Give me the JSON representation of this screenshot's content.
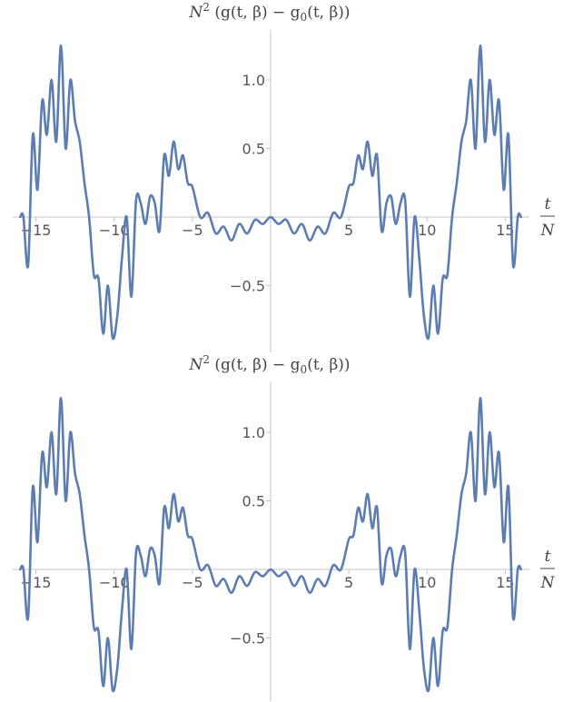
{
  "chart_data": [
    {
      "type": "line",
      "title": {
        "n": "N",
        "sup": "2",
        "rest": " (g(t, β) − g",
        "sub": "0",
        "tail": "(t, β))"
      },
      "xlabel": {
        "num": "t",
        "den": "N"
      },
      "xlim": [
        -16.6,
        16.6
      ],
      "ylim": [
        -0.9,
        1.35
      ],
      "x_ticks": [
        -15,
        -10,
        -5,
        5,
        10,
        15
      ],
      "x_tick_labels": [
        "−15",
        "−10",
        "−5",
        "5",
        "10",
        "15"
      ],
      "y_ticks": [
        1.0,
        0.5,
        -0.5
      ],
      "y_tick_labels": [
        "1.0",
        "0.5",
        "−0.5"
      ],
      "color": "#5b7db1",
      "series": [
        {
          "x": [
            0,
            0.5,
            1,
            1.5,
            2,
            2.5,
            3,
            3.5,
            4,
            4.5,
            5,
            5.3,
            5.6,
            5.9,
            6.2,
            6.5,
            6.8,
            7.1,
            7.4,
            7.7,
            8.0,
            8.3,
            8.6,
            8.9,
            9.2,
            9.5,
            9.8,
            10.1,
            10.4,
            10.7,
            11.0,
            11.3,
            11.6,
            11.9,
            12.2,
            12.5,
            12.8,
            13.1,
            13.4,
            13.7,
            14.0,
            14.3,
            14.6,
            14.9,
            15.2,
            15.5,
            15.8,
            16.0
          ],
          "y": [
            0.0,
            -0.05,
            -0.02,
            -0.12,
            -0.05,
            -0.17,
            -0.07,
            -0.12,
            0.03,
            0.0,
            0.22,
            0.25,
            0.45,
            0.35,
            0.55,
            0.3,
            0.45,
            -0.1,
            0.1,
            0.15,
            -0.05,
            0.1,
            0.12,
            -0.58,
            0.0,
            -0.3,
            -0.72,
            -0.88,
            -0.5,
            -0.85,
            -0.45,
            -0.42,
            0.0,
            0.25,
            0.55,
            0.7,
            1.0,
            0.5,
            1.25,
            0.55,
            1.0,
            0.6,
            0.85,
            0.2,
            0.6,
            -0.35,
            0.0,
            0.0
          ]
        }
      ]
    },
    {
      "type": "line",
      "title": {
        "n": "N",
        "sup": "2",
        "rest": " (g(t, β) − g",
        "sub": "0",
        "tail": "(t, β))"
      },
      "xlabel": {
        "num": "t",
        "den": "N"
      },
      "xlim": [
        -16.6,
        16.6
      ],
      "ylim": [
        -0.9,
        1.35
      ],
      "x_ticks": [
        -15,
        -10,
        -5,
        5,
        10,
        15
      ],
      "x_tick_labels": [
        "−15",
        "−10",
        "−5",
        "5",
        "10",
        "15"
      ],
      "y_ticks": [
        1.0,
        0.5,
        -0.5
      ],
      "y_tick_labels": [
        "1.0",
        "0.5",
        "−0.5"
      ],
      "color": "#5b7db1",
      "series": [
        {
          "x": [
            0,
            0.5,
            1,
            1.5,
            2,
            2.5,
            3,
            3.5,
            4,
            4.5,
            5,
            5.3,
            5.6,
            5.9,
            6.2,
            6.5,
            6.8,
            7.1,
            7.4,
            7.7,
            8.0,
            8.3,
            8.6,
            8.9,
            9.2,
            9.5,
            9.8,
            10.1,
            10.4,
            10.7,
            11.0,
            11.3,
            11.6,
            11.9,
            12.2,
            12.5,
            12.8,
            13.1,
            13.4,
            13.7,
            14.0,
            14.3,
            14.6,
            14.9,
            15.2,
            15.5,
            15.8,
            16.0
          ],
          "y": [
            0.0,
            -0.05,
            -0.02,
            -0.12,
            -0.05,
            -0.17,
            -0.07,
            -0.12,
            0.03,
            0.0,
            0.22,
            0.25,
            0.45,
            0.35,
            0.55,
            0.3,
            0.45,
            -0.1,
            0.1,
            0.15,
            -0.05,
            0.1,
            0.12,
            -0.58,
            0.0,
            -0.3,
            -0.72,
            -0.88,
            -0.5,
            -0.85,
            -0.45,
            -0.42,
            0.0,
            0.25,
            0.55,
            0.7,
            1.0,
            0.5,
            1.25,
            0.55,
            1.0,
            0.6,
            0.85,
            0.2,
            0.6,
            -0.35,
            0.0,
            0.0
          ]
        }
      ]
    }
  ]
}
